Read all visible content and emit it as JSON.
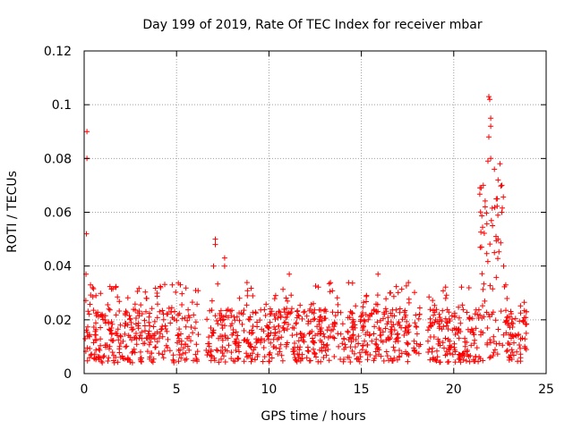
{
  "chart_data": {
    "type": "scatter",
    "title": "Day 199 of 2019, Rate Of TEC Index for receiver mbar",
    "xlabel": "GPS time / hours",
    "ylabel": "ROTI / TECUs",
    "xlim": [
      0,
      25
    ],
    "ylim": [
      0,
      0.12
    ],
    "xticks": [
      0,
      5,
      10,
      15,
      20,
      25
    ],
    "xtick_labels": [
      "0",
      "5",
      "10",
      "15",
      "20",
      "25"
    ],
    "yticks": [
      0,
      0.02,
      0.04,
      0.06,
      0.08,
      0.1,
      0.12
    ],
    "ytick_labels": [
      "0",
      "0.02",
      "0.04",
      "0.06",
      "0.08",
      "0.1",
      "0.12"
    ],
    "grid": true,
    "marker": "+",
    "series": [
      {
        "name": "ROTI",
        "color": "#ff0000",
        "data_gaps_hours": [
          [
            6.2,
            6.6
          ],
          [
            17.6,
            17.8
          ],
          [
            18.2,
            18.6
          ]
        ],
        "baseline_band": [
          0.004,
          0.024
        ],
        "notable_points": [
          {
            "x": 0.15,
            "y": 0.09
          },
          {
            "x": 0.15,
            "y": 0.08
          },
          {
            "x": 0.12,
            "y": 0.052
          },
          {
            "x": 0.1,
            "y": 0.037
          },
          {
            "x": 7.1,
            "y": 0.05
          },
          {
            "x": 7.1,
            "y": 0.048
          },
          {
            "x": 7.0,
            "y": 0.04
          },
          {
            "x": 7.6,
            "y": 0.043
          },
          {
            "x": 7.6,
            "y": 0.04
          },
          {
            "x": 11.1,
            "y": 0.037
          },
          {
            "x": 15.9,
            "y": 0.037
          },
          {
            "x": 21.6,
            "y": 0.07
          },
          {
            "x": 21.7,
            "y": 0.062
          },
          {
            "x": 21.9,
            "y": 0.103
          },
          {
            "x": 21.95,
            "y": 0.102
          },
          {
            "x": 22.0,
            "y": 0.095
          },
          {
            "x": 22.0,
            "y": 0.092
          },
          {
            "x": 21.9,
            "y": 0.088
          },
          {
            "x": 22.0,
            "y": 0.08
          },
          {
            "x": 21.85,
            "y": 0.079
          },
          {
            "x": 22.2,
            "y": 0.076
          },
          {
            "x": 22.5,
            "y": 0.078
          },
          {
            "x": 22.4,
            "y": 0.072
          },
          {
            "x": 22.6,
            "y": 0.07
          },
          {
            "x": 22.3,
            "y": 0.065
          },
          {
            "x": 22.6,
            "y": 0.06
          },
          {
            "x": 22.1,
            "y": 0.055
          },
          {
            "x": 22.4,
            "y": 0.05
          },
          {
            "x": 22.7,
            "y": 0.04
          },
          {
            "x": 22.2,
            "y": 0.045
          }
        ]
      }
    ]
  }
}
